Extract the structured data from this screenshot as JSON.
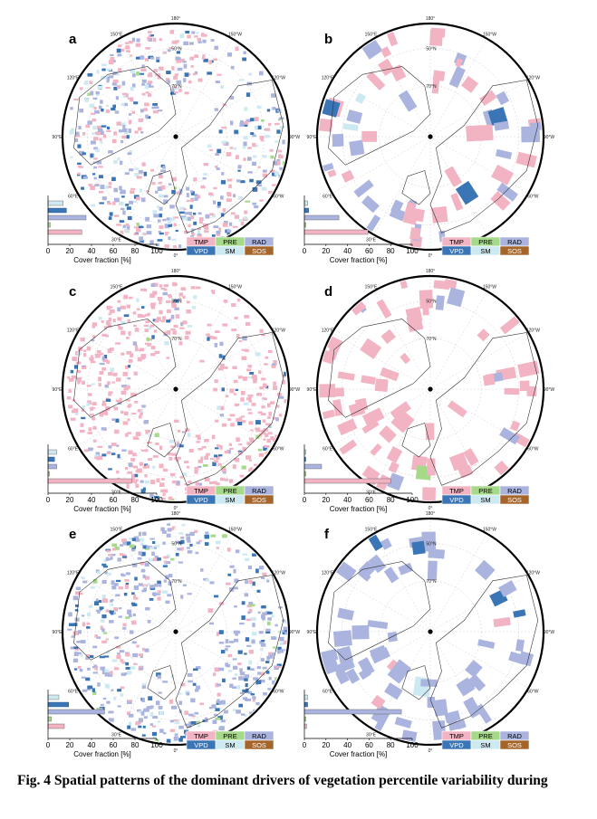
{
  "figure": {
    "caption": "Fig. 4 Spatial patterns of the dominant drivers of vegetation percentile variability during"
  },
  "legend": {
    "items": [
      {
        "code": "TMP",
        "color": "#f2b3c2"
      },
      {
        "code": "PRE",
        "color": "#a6d98a"
      },
      {
        "code": "RAD",
        "color": "#aab4de"
      },
      {
        "code": "VPD",
        "color": "#3a75b5"
      },
      {
        "code": "SM",
        "color": "#cde9f2"
      },
      {
        "code": "SOS",
        "color": "#a5652a"
      }
    ]
  },
  "map": {
    "longitude_labels": [
      "180°",
      "150°E",
      "120°E",
      "90°E",
      "60°E",
      "30°E",
      "0°",
      "30°W",
      "60°W",
      "90°W",
      "120°W",
      "150°W"
    ],
    "latitude_labels": [
      "50°N",
      "70°N"
    ]
  },
  "chart_data": [
    {
      "panel": "a",
      "type": "bar",
      "orientation": "horizontal",
      "xlabel": "Cover fraction [%]",
      "xticks": [
        0,
        20,
        40,
        60,
        80,
        100
      ],
      "xlim": [
        0,
        100
      ],
      "series": [
        {
          "name": "SM",
          "value": 14
        },
        {
          "name": "VPD",
          "value": 17
        },
        {
          "name": "RAD",
          "value": 35
        },
        {
          "name": "PRE",
          "value": 2
        },
        {
          "name": "TMP",
          "value": 31
        }
      ]
    },
    {
      "panel": "b",
      "type": "bar",
      "orientation": "horizontal",
      "xlabel": "Cover fraction [%]",
      "xticks": [
        0,
        20,
        40,
        60,
        80,
        100
      ],
      "xlim": [
        0,
        100
      ],
      "series": [
        {
          "name": "SM",
          "value": 3
        },
        {
          "name": "VPD",
          "value": 4
        },
        {
          "name": "RAD",
          "value": 32
        },
        {
          "name": "PRE",
          "value": 1
        },
        {
          "name": "TMP",
          "value": 59
        }
      ]
    },
    {
      "panel": "c",
      "type": "bar",
      "orientation": "horizontal",
      "xlabel": "Cover fraction [%]",
      "xticks": [
        0,
        20,
        40,
        60,
        80,
        100
      ],
      "xlim": [
        0,
        100
      ],
      "series": [
        {
          "name": "SM",
          "value": 8
        },
        {
          "name": "VPD",
          "value": 6
        },
        {
          "name": "RAD",
          "value": 8
        },
        {
          "name": "PRE",
          "value": 1
        },
        {
          "name": "TMP",
          "value": 77
        }
      ]
    },
    {
      "panel": "d",
      "type": "bar",
      "orientation": "horizontal",
      "xlabel": "Cover fraction [%]",
      "xticks": [
        0,
        20,
        40,
        60,
        80,
        100
      ],
      "xlim": [
        0,
        100
      ],
      "series": [
        {
          "name": "SM",
          "value": 1
        },
        {
          "name": "VPD",
          "value": 1
        },
        {
          "name": "RAD",
          "value": 16
        },
        {
          "name": "PRE",
          "value": 1
        },
        {
          "name": "TMP",
          "value": 80
        }
      ]
    },
    {
      "panel": "e",
      "type": "bar",
      "orientation": "horizontal",
      "xlabel": "Cover fraction [%]",
      "xticks": [
        0,
        20,
        40,
        60,
        80,
        100
      ],
      "xlim": [
        0,
        100
      ],
      "series": [
        {
          "name": "SM",
          "value": 10
        },
        {
          "name": "VPD",
          "value": 19
        },
        {
          "name": "RAD",
          "value": 52
        },
        {
          "name": "PRE",
          "value": 3
        },
        {
          "name": "TMP",
          "value": 15
        }
      ]
    },
    {
      "panel": "f",
      "type": "bar",
      "orientation": "horizontal",
      "xlabel": "Cover fraction [%]",
      "xticks": [
        0,
        20,
        40,
        60,
        80,
        100
      ],
      "xlim": [
        0,
        100
      ],
      "series": [
        {
          "name": "SM",
          "value": 3
        },
        {
          "name": "VPD",
          "value": 3
        },
        {
          "name": "RAD",
          "value": 90
        },
        {
          "name": "PRE",
          "value": 1
        },
        {
          "name": "TMP",
          "value": 2
        }
      ]
    }
  ]
}
